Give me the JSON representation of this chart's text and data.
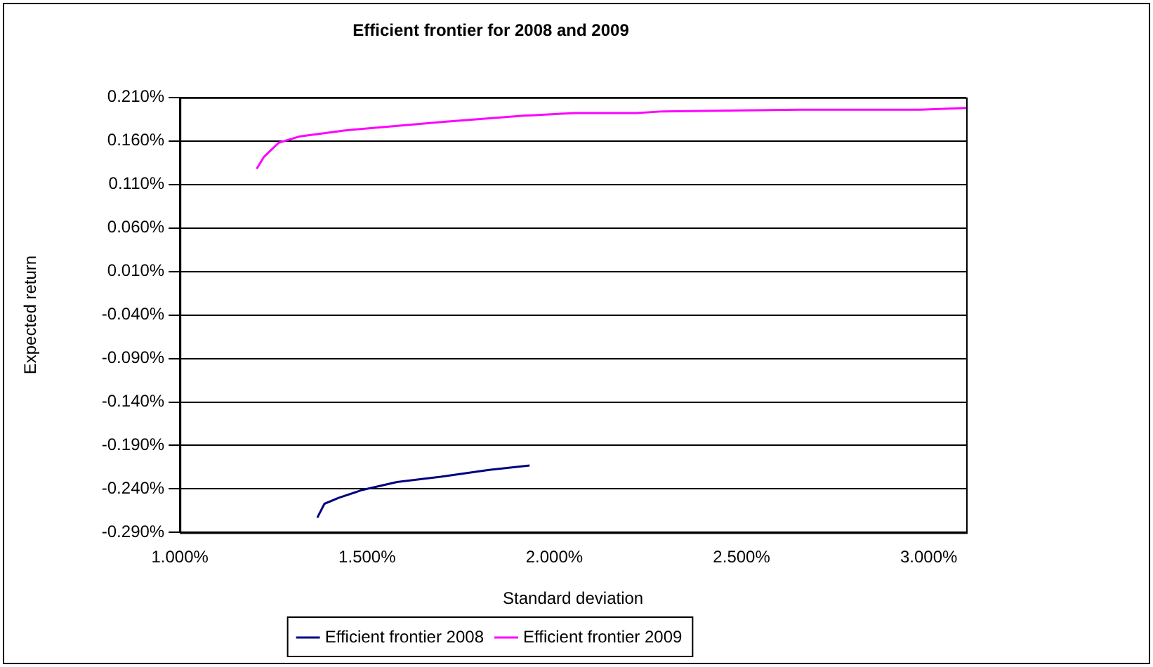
{
  "chart_data": {
    "type": "line",
    "title": "Efficient frontier for 2008 and 2009",
    "xlabel": "Standard deviation",
    "ylabel": "Expected return",
    "xlim": [
      1.0,
      3.1
    ],
    "xticks": [
      {
        "value": 1.0,
        "label": "1.000%"
      },
      {
        "value": 1.5,
        "label": "1.500%"
      },
      {
        "value": 2.0,
        "label": "2.000%"
      },
      {
        "value": 2.5,
        "label": "2.500%"
      },
      {
        "value": 3.0,
        "label": "3.000%"
      }
    ],
    "ylim": [
      -0.29,
      0.21
    ],
    "yticks": [
      {
        "value": -0.29,
        "label": "-0.290%"
      },
      {
        "value": -0.24,
        "label": "-0.240%"
      },
      {
        "value": -0.19,
        "label": "-0.190%"
      },
      {
        "value": -0.14,
        "label": "-0.140%"
      },
      {
        "value": -0.09,
        "label": "-0.090%"
      },
      {
        "value": -0.04,
        "label": "-0.040%"
      },
      {
        "value": 0.01,
        "label": "0.010%"
      },
      {
        "value": 0.06,
        "label": "0.060%"
      },
      {
        "value": 0.11,
        "label": "0.110%"
      },
      {
        "value": 0.16,
        "label": "0.160%"
      },
      {
        "value": 0.21,
        "label": "0.210%"
      }
    ],
    "grid": "y",
    "legend": "bottom",
    "marker": "none",
    "line_style": "solid",
    "series": [
      {
        "name": "Efficient frontier 2008",
        "color": "#000080",
        "x": [
          1.367,
          1.386,
          1.425,
          1.488,
          1.58,
          1.697,
          1.826,
          1.934
        ],
        "values": [
          -0.273,
          -0.257,
          -0.25,
          -0.241,
          -0.232,
          -0.226,
          -0.218,
          -0.213
        ]
      },
      {
        "name": "Efficient frontier 2009",
        "color": "#ff00ff",
        "x": [
          1.205,
          1.225,
          1.264,
          1.318,
          1.438,
          1.57,
          1.705,
          1.918,
          2.054,
          2.22,
          2.29,
          2.655,
          2.977,
          3.1
        ],
        "values": [
          0.128,
          0.142,
          0.158,
          0.165,
          0.172,
          0.177,
          0.182,
          0.189,
          0.192,
          0.192,
          0.194,
          0.196,
          0.196,
          0.198
        ]
      }
    ]
  }
}
